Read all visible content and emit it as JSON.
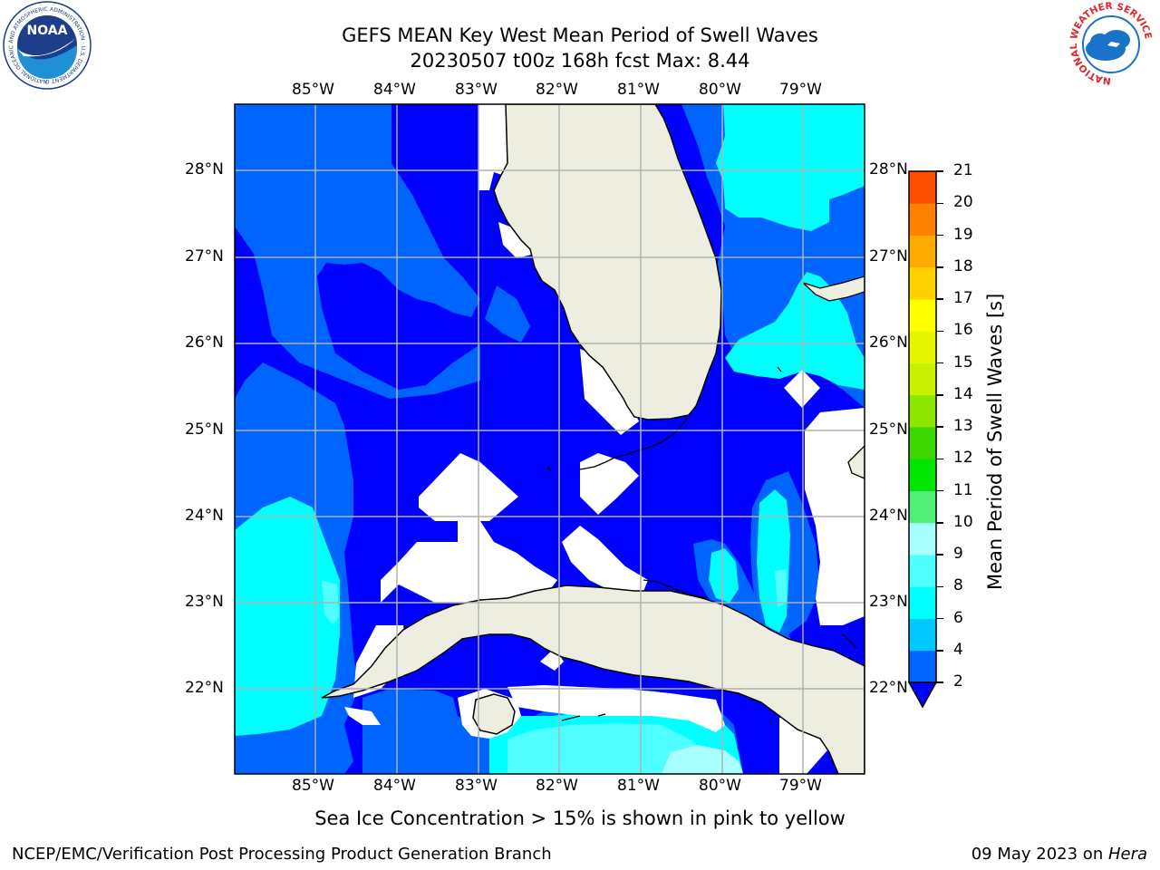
{
  "title": {
    "line1": "GEFS MEAN Key West Mean Period of Swell Waves",
    "line2": "20230507 t00z 168h fcst   Max: 8.44"
  },
  "map": {
    "lon_labels": [
      "85°W",
      "84°W",
      "83°W",
      "82°W",
      "81°W",
      "80°W",
      "79°W"
    ],
    "lat_labels": [
      "28°N",
      "27°N",
      "26°N",
      "25°N",
      "24°N",
      "23°N",
      "22°N"
    ],
    "lon_range": [
      -86.0,
      -78.3
    ],
    "lat_range": [
      21.0,
      28.8
    ],
    "land_color": "#eeeee0",
    "grid_color": "#b0b0b0",
    "regions": [
      "Florida Peninsula",
      "Cuba",
      "Isle of Youth",
      "Florida Keys",
      "Bahamas"
    ]
  },
  "colorbar": {
    "label": "Mean Period of Swell Waves [s]",
    "ticks": [
      "2",
      "4",
      "6",
      "8",
      "9",
      "10",
      "11",
      "12",
      "13",
      "14",
      "15",
      "16",
      "17",
      "18",
      "19",
      "20",
      "21"
    ],
    "colors": [
      "#0064ff",
      "#00c8ff",
      "#00ffff",
      "#50ffff",
      "#aaffff",
      "#50f078",
      "#00e600",
      "#3cd700",
      "#8ce600",
      "#c8f000",
      "#e6f500",
      "#ffff00",
      "#ffd200",
      "#ffaa00",
      "#ff8200",
      "#ff5000",
      "#ff0000"
    ],
    "extend_color": "#0000ff"
  },
  "notes": {
    "sea_ice": "Sea Ice Concentration > 15% is shown in pink to yellow"
  },
  "footer": {
    "left": "NCEP/EMC/Verification Post Processing Product Generation Branch",
    "right_date": "09 May 2023 on ",
    "right_machine": "Hera"
  },
  "logos": {
    "noaa_text": "NOAA",
    "noaa_ring": "NATIONAL OCEANIC AND ATMOSPHERIC ADMINISTRATION · U.S. DEPARTMENT OF COMMERCE",
    "nws_ring": "NATIONAL WEATHER SERVICE"
  }
}
